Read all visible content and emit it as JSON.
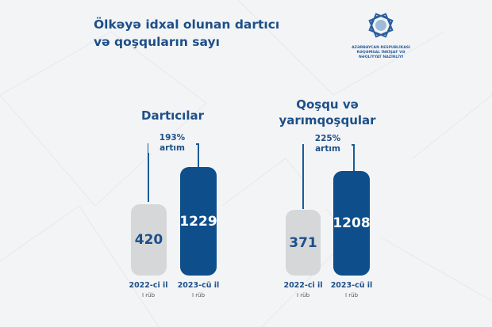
{
  "header": {
    "title_line1": "Ölkəyə idxal olunan dartıcı",
    "title_line2": "və qoşquların sayı"
  },
  "logo": {
    "text": "AZƏRBAYCAN RESPUBLİKASI RƏQƏMSAL İNKİŞAF VƏ NƏQLİYYAT NAZİRLİYİ",
    "line1": "AZƏRBAYCAN RESPUBLİKASI",
    "line2": "RƏQƏMSAL İNKİŞAF VƏ",
    "line3": "NƏQLİYYAT NAZİRLİYİ"
  },
  "colors": {
    "accent": "#0d4e8b",
    "gray_bar": "#d6d7d9",
    "text": "#1d4f88",
    "background": "#f3f4f6"
  },
  "chart_data": [
    {
      "type": "bar",
      "title": "Dartıcılar",
      "categories": [
        "2022-ci il",
        "2023-cü il"
      ],
      "sublabels": [
        "I rüb",
        "I rüb"
      ],
      "values": [
        420,
        1229
      ],
      "value_labels": [
        "420",
        "1229"
      ],
      "growth": {
        "percent": "193%",
        "label": "artım"
      }
    },
    {
      "type": "bar",
      "title_line1": "Qoşqu və",
      "title_line2": "yarımqoşqular",
      "categories": [
        "2022-ci il",
        "2023-cü il"
      ],
      "sublabels": [
        "I rüb",
        "I rüb"
      ],
      "values": [
        371,
        1208
      ],
      "value_labels": [
        "371",
        "1208"
      ],
      "growth": {
        "percent": "225%",
        "label": "artım"
      }
    }
  ]
}
